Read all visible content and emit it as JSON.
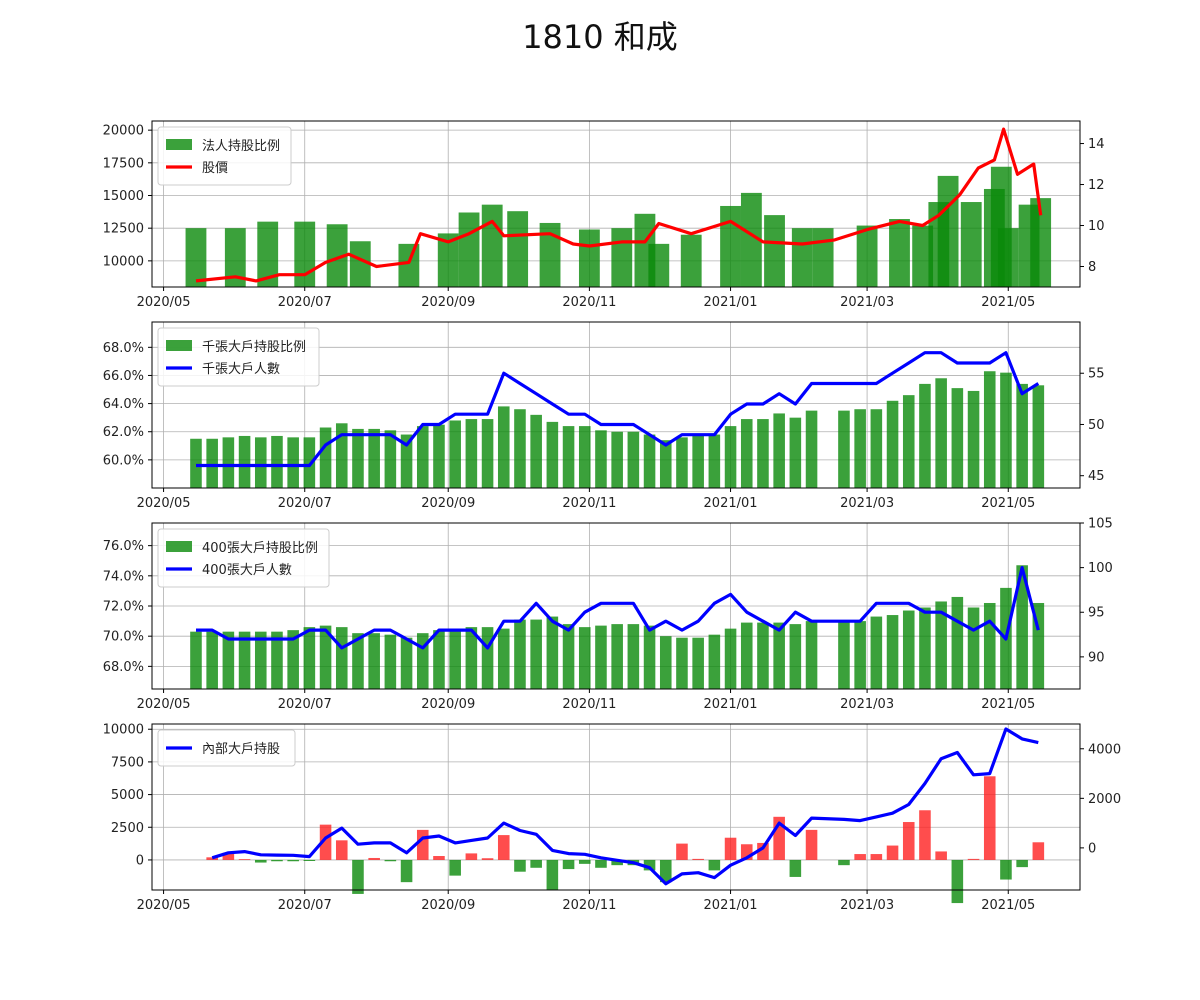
{
  "figure": {
    "title": "1810 和成"
  },
  "colors": {
    "bar_green": "#0a8a0a",
    "bar_red": "#ff2020",
    "price_line": "#ff0000",
    "holder_line": "#0000ff",
    "grid": "#b0b0b0"
  },
  "chart_data": [
    {
      "type": "bar",
      "panel": "institutional",
      "x_ticks": [
        "2020/05",
        "2020/07",
        "2020/09",
        "2020/11",
        "2021/01",
        "2021/03",
        "2021/05"
      ],
      "xlim": [
        "2020-04-26",
        "2021-06-01"
      ],
      "y_left": {
        "ticks": [
          10000,
          12500,
          15000,
          17500,
          20000
        ],
        "tick_labels": [
          "10000",
          "12500",
          "15000",
          "17500",
          "20000"
        ],
        "ylim": [
          8000,
          20700
        ]
      },
      "y_right": {
        "ticks": [
          8,
          10,
          12,
          14
        ],
        "tick_labels": [
          "8",
          "10",
          "12",
          "14"
        ],
        "ylim": [
          7.0,
          15.1
        ]
      },
      "legend": [
        "法人持股比例",
        "股價"
      ],
      "legend_loc": "upper-left",
      "grid": true,
      "bars": {
        "name": "法人持股比例",
        "x": [
          "2020-05-15",
          "2020-06-01",
          "2020-06-15",
          "2020-07-01",
          "2020-07-15",
          "2020-07-25",
          "2020-08-15",
          "2020-09-01",
          "2020-09-10",
          "2020-09-20",
          "2020-10-01",
          "2020-10-15",
          "2020-11-01",
          "2020-11-15",
          "2020-11-25",
          "2020-12-01",
          "2020-12-15",
          "2021-01-01",
          "2021-01-10",
          "2021-01-20",
          "2021-02-01",
          "2021-02-10",
          "2021-03-01",
          "2021-03-15",
          "2021-03-25",
          "2021-04-01",
          "2021-04-05",
          "2021-04-15",
          "2021-04-25",
          "2021-04-28",
          "2021-05-01",
          "2021-05-10",
          "2021-05-15"
        ],
        "y": [
          12500,
          12500,
          13000,
          13000,
          12800,
          11500,
          11300,
          12100,
          13700,
          14300,
          13800,
          12900,
          12400,
          12500,
          13600,
          11300,
          12000,
          14200,
          15200,
          13500,
          12500,
          12500,
          12700,
          13200,
          12700,
          14500,
          16500,
          14500,
          15500,
          17200,
          12500,
          14300,
          14800
        ]
      },
      "line": {
        "name": "股價",
        "x": [
          "2020-05-15",
          "2020-06-01",
          "2020-06-10",
          "2020-06-20",
          "2020-07-01",
          "2020-07-10",
          "2020-07-20",
          "2020-08-01",
          "2020-08-15",
          "2020-08-20",
          "2020-09-01",
          "2020-09-10",
          "2020-09-20",
          "2020-09-25",
          "2020-10-15",
          "2020-10-25",
          "2020-11-01",
          "2020-11-15",
          "2020-11-25",
          "2020-12-01",
          "2020-12-15",
          "2021-01-01",
          "2021-01-15",
          "2021-02-01",
          "2021-02-15",
          "2021-03-01",
          "2021-03-15",
          "2021-03-25",
          "2021-04-01",
          "2021-04-10",
          "2021-04-18",
          "2021-04-25",
          "2021-04-29",
          "2021-05-05",
          "2021-05-12",
          "2021-05-15"
        ],
        "y": [
          7.3,
          7.5,
          7.3,
          7.6,
          7.6,
          8.2,
          8.6,
          8.0,
          8.2,
          9.6,
          9.2,
          9.6,
          10.2,
          9.5,
          9.6,
          9.1,
          9.0,
          9.2,
          9.2,
          10.1,
          9.6,
          10.2,
          9.2,
          9.1,
          9.3,
          9.8,
          10.2,
          10.0,
          10.5,
          11.5,
          12.8,
          13.2,
          14.7,
          12.5,
          13.0,
          10.5
        ]
      }
    },
    {
      "type": "bar",
      "panel": "holders_1000",
      "x_ticks": [
        "2020/05",
        "2020/07",
        "2020/09",
        "2020/11",
        "2021/01",
        "2021/03",
        "2021/05"
      ],
      "xlim": [
        "2020-04-26",
        "2021-06-01"
      ],
      "y_left": {
        "ticks": [
          60,
          62,
          64,
          66,
          68
        ],
        "tick_labels": [
          "60.0%",
          "62.0%",
          "64.0%",
          "66.0%",
          "68.0%"
        ],
        "ylim": [
          58.0,
          69.8
        ]
      },
      "y_right": {
        "ticks": [
          45,
          50,
          55
        ],
        "tick_labels": [
          "45",
          "50",
          "55"
        ],
        "ylim": [
          43.8,
          60.0
        ]
      },
      "legend": [
        "千張大戶持股比例",
        "千張大戶人數"
      ],
      "legend_loc": "upper-left",
      "grid": true,
      "bars": {
        "name": "千張大戶持股比例",
        "x": [
          "2020-05-15",
          "2020-05-22",
          "2020-05-29",
          "2020-06-05",
          "2020-06-12",
          "2020-06-19",
          "2020-06-26",
          "2020-07-03",
          "2020-07-10",
          "2020-07-17",
          "2020-07-24",
          "2020-07-31",
          "2020-08-07",
          "2020-08-14",
          "2020-08-21",
          "2020-08-28",
          "2020-09-04",
          "2020-09-11",
          "2020-09-18",
          "2020-09-25",
          "2020-10-02",
          "2020-10-09",
          "2020-10-16",
          "2020-10-23",
          "2020-10-30",
          "2020-11-06",
          "2020-11-13",
          "2020-11-20",
          "2020-11-27",
          "2020-12-04",
          "2020-12-11",
          "2020-12-18",
          "2020-12-25",
          "2021-01-01",
          "2021-01-08",
          "2021-01-15",
          "2021-01-22",
          "2021-01-29",
          "2021-02-05",
          "2021-02-19",
          "2021-02-26",
          "2021-03-05",
          "2021-03-12",
          "2021-03-19",
          "2021-03-26",
          "2021-04-02",
          "2021-04-09",
          "2021-04-16",
          "2021-04-23",
          "2021-04-30",
          "2021-05-07",
          "2021-05-14"
        ],
        "y": [
          61.5,
          61.5,
          61.6,
          61.7,
          61.6,
          61.7,
          61.6,
          61.6,
          62.3,
          62.6,
          62.2,
          62.2,
          62.1,
          61.8,
          62.4,
          62.5,
          62.8,
          62.9,
          62.9,
          63.8,
          63.6,
          63.2,
          62.7,
          62.4,
          62.4,
          62.1,
          62.0,
          62.0,
          61.8,
          61.4,
          61.6,
          61.7,
          61.8,
          62.4,
          62.9,
          62.9,
          63.3,
          63.0,
          63.5,
          63.5,
          63.6,
          63.6,
          64.2,
          64.6,
          65.4,
          65.8,
          65.1,
          64.9,
          66.3,
          66.2,
          65.4,
          65.3
        ]
      },
      "line": {
        "name": "千張大戶人數",
        "x": [
          "2020-05-15",
          "2020-05-22",
          "2020-05-29",
          "2020-06-05",
          "2020-06-12",
          "2020-06-19",
          "2020-06-26",
          "2020-07-03",
          "2020-07-10",
          "2020-07-17",
          "2020-07-24",
          "2020-07-31",
          "2020-08-07",
          "2020-08-14",
          "2020-08-21",
          "2020-08-28",
          "2020-09-04",
          "2020-09-11",
          "2020-09-18",
          "2020-09-25",
          "2020-10-02",
          "2020-10-09",
          "2020-10-16",
          "2020-10-23",
          "2020-10-30",
          "2020-11-06",
          "2020-11-13",
          "2020-11-20",
          "2020-11-27",
          "2020-12-04",
          "2020-12-11",
          "2020-12-18",
          "2020-12-25",
          "2021-01-01",
          "2021-01-08",
          "2021-01-15",
          "2021-01-22",
          "2021-01-29",
          "2021-02-05",
          "2021-02-19",
          "2021-02-26",
          "2021-03-05",
          "2021-03-12",
          "2021-03-19",
          "2021-03-26",
          "2021-04-02",
          "2021-04-09",
          "2021-04-16",
          "2021-04-23",
          "2021-04-30",
          "2021-05-07",
          "2021-05-14"
        ],
        "y": [
          46,
          46,
          46,
          46,
          46,
          46,
          46,
          46,
          48,
          49,
          49,
          49,
          49,
          48,
          50,
          50,
          51,
          51,
          51,
          55,
          54,
          53,
          52,
          51,
          51,
          50,
          50,
          50,
          49,
          48,
          49,
          49,
          49,
          51,
          52,
          52,
          53,
          52,
          54,
          54,
          54,
          54,
          55,
          56,
          57,
          57,
          56,
          56,
          56,
          57,
          53,
          54
        ]
      }
    },
    {
      "type": "bar",
      "panel": "holders_400",
      "x_ticks": [
        "2020/05",
        "2020/07",
        "2020/09",
        "2020/11",
        "2021/01",
        "2021/03",
        "2021/05"
      ],
      "xlim": [
        "2020-04-26",
        "2021-06-01"
      ],
      "y_left": {
        "ticks": [
          68,
          70,
          72,
          74,
          76
        ],
        "tick_labels": [
          "68.0%",
          "70.0%",
          "72.0%",
          "74.0%",
          "76.0%"
        ],
        "ylim": [
          66.5,
          77.5
        ]
      },
      "y_right": {
        "ticks": [
          90,
          95,
          100,
          105
        ],
        "tick_labels": [
          "90",
          "95",
          "100",
          "105"
        ],
        "ylim": [
          86.4,
          105.0
        ]
      },
      "legend": [
        "400張大戶持股比例",
        "400張大戶人數"
      ],
      "legend_loc": "upper-left",
      "grid": true,
      "bars": {
        "name": "400張大戶持股比例",
        "x": [
          "2020-05-15",
          "2020-05-22",
          "2020-05-29",
          "2020-06-05",
          "2020-06-12",
          "2020-06-19",
          "2020-06-26",
          "2020-07-03",
          "2020-07-10",
          "2020-07-17",
          "2020-07-24",
          "2020-07-31",
          "2020-08-07",
          "2020-08-14",
          "2020-08-21",
          "2020-08-28",
          "2020-09-04",
          "2020-09-11",
          "2020-09-18",
          "2020-09-25",
          "2020-10-02",
          "2020-10-09",
          "2020-10-16",
          "2020-10-23",
          "2020-10-30",
          "2020-11-06",
          "2020-11-13",
          "2020-11-20",
          "2020-11-27",
          "2020-12-04",
          "2020-12-11",
          "2020-12-18",
          "2020-12-25",
          "2021-01-01",
          "2021-01-08",
          "2021-01-15",
          "2021-01-22",
          "2021-01-29",
          "2021-02-05",
          "2021-02-19",
          "2021-02-26",
          "2021-03-05",
          "2021-03-12",
          "2021-03-19",
          "2021-03-26",
          "2021-04-02",
          "2021-04-09",
          "2021-04-16",
          "2021-04-23",
          "2021-04-30",
          "2021-05-07",
          "2021-05-14"
        ],
        "y": [
          70.3,
          70.3,
          70.3,
          70.3,
          70.3,
          70.3,
          70.4,
          70.6,
          70.7,
          70.6,
          70.2,
          70.2,
          70.1,
          69.9,
          70.2,
          70.4,
          70.5,
          70.6,
          70.6,
          70.5,
          71.1,
          71.1,
          71.3,
          70.8,
          70.6,
          70.7,
          70.8,
          70.8,
          70.7,
          70.0,
          69.9,
          69.9,
          70.1,
          70.5,
          70.9,
          70.9,
          70.9,
          70.8,
          71.0,
          71.0,
          71.0,
          71.3,
          71.4,
          71.7,
          71.9,
          72.3,
          72.6,
          71.9,
          72.2,
          73.2,
          74.7,
          72.2
        ]
      },
      "line": {
        "name": "400張大戶人數",
        "x": [
          "2020-05-15",
          "2020-05-22",
          "2020-05-29",
          "2020-06-05",
          "2020-06-12",
          "2020-06-19",
          "2020-06-26",
          "2020-07-03",
          "2020-07-10",
          "2020-07-17",
          "2020-07-24",
          "2020-07-31",
          "2020-08-07",
          "2020-08-14",
          "2020-08-21",
          "2020-08-28",
          "2020-09-04",
          "2020-09-11",
          "2020-09-18",
          "2020-09-25",
          "2020-10-02",
          "2020-10-09",
          "2020-10-16",
          "2020-10-23",
          "2020-10-30",
          "2020-11-06",
          "2020-11-13",
          "2020-11-20",
          "2020-11-27",
          "2020-12-04",
          "2020-12-11",
          "2020-12-18",
          "2020-12-25",
          "2021-01-01",
          "2021-01-08",
          "2021-01-15",
          "2021-01-22",
          "2021-01-29",
          "2021-02-05",
          "2021-02-19",
          "2021-02-26",
          "2021-03-05",
          "2021-03-12",
          "2021-03-19",
          "2021-03-26",
          "2021-04-02",
          "2021-04-09",
          "2021-04-16",
          "2021-04-23",
          "2021-04-30",
          "2021-05-07",
          "2021-05-14"
        ],
        "y": [
          93,
          93,
          92,
          92,
          92,
          92,
          92,
          93,
          93,
          91,
          92,
          93,
          93,
          92,
          91,
          93,
          93,
          93,
          91,
          94,
          94,
          96,
          94,
          93,
          95,
          96,
          96,
          96,
          93,
          94,
          93,
          94,
          96,
          97,
          95,
          94,
          93,
          95,
          94,
          94,
          94,
          96,
          96,
          96,
          95,
          95,
          94,
          93,
          94,
          92,
          100,
          93
        ]
      }
    },
    {
      "type": "bar",
      "panel": "insider",
      "x_ticks": [
        "2020/05",
        "2020/07",
        "2020/09",
        "2020/11",
        "2021/01",
        "2021/03",
        "2021/05"
      ],
      "xlim": [
        "2020-04-26",
        "2021-06-01"
      ],
      "y_left": {
        "ticks": [
          0,
          2500,
          5000,
          7500,
          10000
        ],
        "tick_labels": [
          "0",
          "2500",
          "5000",
          "7500",
          "10000"
        ],
        "ylim": [
          -2300,
          10400
        ]
      },
      "y_right": {
        "ticks": [
          0,
          2000,
          4000
        ],
        "tick_labels": [
          "0",
          "2000",
          "4000"
        ],
        "ylim": [
          -1700,
          5000
        ]
      },
      "legend": [
        "內部大戶持股"
      ],
      "legend_loc": "upper-left",
      "grid": true,
      "bars": {
        "name": "",
        "x": [
          "2020-05-22",
          "2020-05-29",
          "2020-06-05",
          "2020-06-12",
          "2020-06-19",
          "2020-06-26",
          "2020-07-03",
          "2020-07-10",
          "2020-07-17",
          "2020-07-24",
          "2020-07-31",
          "2020-08-07",
          "2020-08-14",
          "2020-08-21",
          "2020-08-28",
          "2020-09-04",
          "2020-09-11",
          "2020-09-18",
          "2020-09-25",
          "2020-10-02",
          "2020-10-09",
          "2020-10-16",
          "2020-10-23",
          "2020-10-30",
          "2020-11-06",
          "2020-11-13",
          "2020-11-20",
          "2020-11-27",
          "2020-12-04",
          "2020-12-11",
          "2020-12-18",
          "2020-12-25",
          "2021-01-01",
          "2021-01-08",
          "2021-01-15",
          "2021-01-22",
          "2021-01-29",
          "2021-02-05",
          "2021-02-19",
          "2021-02-26",
          "2021-03-05",
          "2021-03-12",
          "2021-03-19",
          "2021-03-26",
          "2021-04-02",
          "2021-04-09",
          "2021-04-16",
          "2021-04-23",
          "2021-04-30",
          "2021-05-07",
          "2021-05-14"
        ],
        "y": [
          200,
          550,
          60,
          -200,
          -100,
          -100,
          -80,
          2700,
          1500,
          -2600,
          150,
          -100,
          -1700,
          2300,
          300,
          -1200,
          500,
          130,
          1900,
          -900,
          -600,
          -2300,
          -700,
          -300,
          -600,
          -400,
          -400,
          -800,
          -1700,
          1250,
          80,
          -800,
          1700,
          1200,
          1300,
          3300,
          -1300,
          2300,
          -400,
          450,
          450,
          1100,
          2900,
          3800,
          650,
          -3300,
          80,
          6400,
          -1500,
          -550,
          1350
        ]
      },
      "line": {
        "name": "內部大戶持股",
        "x": [
          "2020-05-22",
          "2020-05-29",
          "2020-06-05",
          "2020-06-12",
          "2020-06-19",
          "2020-06-26",
          "2020-07-03",
          "2020-07-10",
          "2020-07-17",
          "2020-07-24",
          "2020-07-31",
          "2020-08-07",
          "2020-08-14",
          "2020-08-21",
          "2020-08-28",
          "2020-09-04",
          "2020-09-11",
          "2020-09-18",
          "2020-09-25",
          "2020-10-02",
          "2020-10-09",
          "2020-10-16",
          "2020-10-23",
          "2020-10-30",
          "2020-11-06",
          "2020-11-13",
          "2020-11-20",
          "2020-11-27",
          "2020-12-04",
          "2020-12-11",
          "2020-12-18",
          "2020-12-25",
          "2021-01-01",
          "2021-01-08",
          "2021-01-15",
          "2021-01-22",
          "2021-01-29",
          "2021-02-05",
          "2021-02-19",
          "2021-02-26",
          "2021-03-05",
          "2021-03-12",
          "2021-03-19",
          "2021-03-26",
          "2021-04-02",
          "2021-04-09",
          "2021-04-16",
          "2021-04-23",
          "2021-04-30",
          "2021-05-07",
          "2021-05-14"
        ],
        "y": [
          -400,
          -200,
          -150,
          -280,
          -290,
          -300,
          -350,
          400,
          800,
          150,
          200,
          200,
          -200,
          400,
          480,
          200,
          300,
          400,
          1000,
          700,
          550,
          -100,
          -230,
          -260,
          -400,
          -500,
          -600,
          -800,
          -1450,
          -1050,
          -1000,
          -1200,
          -700,
          -400,
          0,
          1000,
          500,
          1200,
          1150,
          1100,
          1250,
          1400,
          1750,
          2600,
          3600,
          3850,
          2950,
          3000,
          4800,
          4400,
          4250
        ]
      }
    }
  ]
}
